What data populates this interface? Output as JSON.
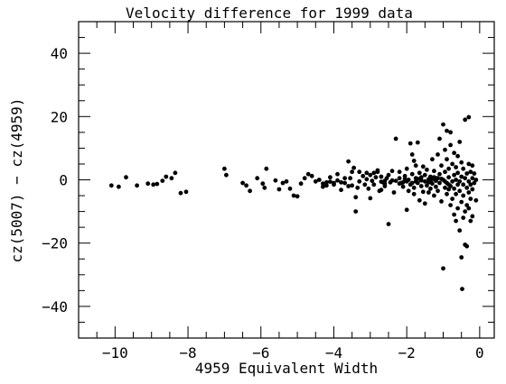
{
  "chart_data": {
    "type": "scatter",
    "title": "Velocity difference for 1999 data",
    "xlabel": "4959 Equivalent Width",
    "ylabel": "cz(5007) − cz(4959)",
    "xlim": [
      -11,
      0.4
    ],
    "ylim": [
      -50,
      50
    ],
    "xticks": [
      -10,
      -8,
      -6,
      -4,
      -2,
      0
    ],
    "yticks": [
      -40,
      -20,
      0,
      20,
      40
    ],
    "x_tick_labels": [
      "−10",
      "−8",
      "−6",
      "−4",
      "−2",
      "0"
    ],
    "y_tick_labels": [
      "−40",
      "−20",
      "0",
      "20",
      "40"
    ],
    "grid": false,
    "legend": "none",
    "marker_color": "#000000",
    "series": [
      {
        "points": [
          [
            -10.1,
            -1.8
          ],
          [
            -9.9,
            -2.2
          ],
          [
            -9.7,
            0.8
          ],
          [
            -9.4,
            -1.8
          ],
          [
            -9.1,
            -1.2
          ],
          [
            -8.95,
            -1.5
          ],
          [
            -8.85,
            -1.3
          ],
          [
            -8.7,
            -0.3
          ],
          [
            -8.6,
            1.0
          ],
          [
            -8.45,
            0.5
          ],
          [
            -8.35,
            2.2
          ],
          [
            -8.2,
            -4.2
          ],
          [
            -8.05,
            -3.8
          ],
          [
            -7.0,
            3.5
          ],
          [
            -6.95,
            1.5
          ],
          [
            -6.5,
            -1.0
          ],
          [
            -6.4,
            -1.8
          ],
          [
            -6.3,
            -3.5
          ],
          [
            -6.1,
            0.5
          ],
          [
            -5.95,
            -1.2
          ],
          [
            -5.9,
            -2.5
          ],
          [
            -5.85,
            3.5
          ],
          [
            -5.6,
            -0.2
          ],
          [
            -5.5,
            -3.0
          ],
          [
            -5.4,
            -1.0
          ],
          [
            -5.3,
            -0.5
          ],
          [
            -5.2,
            -2.8
          ],
          [
            -5.1,
            -5.0
          ],
          [
            -5.0,
            -5.2
          ],
          [
            -4.9,
            -1.2
          ],
          [
            -4.8,
            0.5
          ],
          [
            -4.7,
            1.8
          ],
          [
            -4.6,
            1.2
          ],
          [
            -4.5,
            -0.5
          ],
          [
            -4.4,
            0.0
          ],
          [
            -4.3,
            -2.2
          ],
          [
            -4.2,
            -0.8
          ],
          [
            -4.1,
            0.8
          ],
          [
            -4.0,
            -1.5
          ],
          [
            -3.9,
            1.8
          ],
          [
            -3.8,
            -3.2
          ],
          [
            -3.7,
            -1.0
          ],
          [
            -3.6,
            -2.0
          ],
          [
            -3.55,
            0.5
          ],
          [
            -3.5,
            -1.8
          ],
          [
            -3.45,
            3.8
          ],
          [
            -3.4,
            -10.0
          ],
          [
            -3.35,
            -2.5
          ],
          [
            -3.3,
            -0.5
          ],
          [
            -3.2,
            1.2
          ],
          [
            -3.15,
            -1.5
          ],
          [
            -3.1,
            0.2
          ],
          [
            -3.05,
            -2.8
          ],
          [
            -3.0,
            1.5
          ],
          [
            -2.95,
            -0.3
          ],
          [
            -2.9,
            -1.5
          ],
          [
            -2.85,
            0.8
          ],
          [
            -2.8,
            2.5
          ],
          [
            -2.75,
            -3.5
          ],
          [
            -2.7,
            1.0
          ],
          [
            -2.65,
            -0.8
          ],
          [
            -2.6,
            -2.0
          ],
          [
            -2.55,
            0.5
          ],
          [
            -3.6,
            5.8
          ],
          [
            -3.5,
            2.5
          ],
          [
            -3.3,
            2.5
          ],
          [
            -3.1,
            2.2
          ],
          [
            -2.9,
            2.2
          ],
          [
            -2.8,
            3.0
          ],
          [
            -3.4,
            -5.5
          ],
          [
            -3.0,
            -5.8
          ],
          [
            -2.7,
            -3.2
          ],
          [
            -2.6,
            -1.2
          ],
          [
            -2.5,
            1.5
          ],
          [
            -2.5,
            -14.0
          ],
          [
            -2.4,
            2.8
          ],
          [
            -2.4,
            -0.2
          ],
          [
            -2.3,
            13.0
          ],
          [
            -2.35,
            -4.0
          ],
          [
            -2.2,
            2.5
          ],
          [
            -2.2,
            0.5
          ],
          [
            -2.15,
            -1.0
          ],
          [
            -2.1,
            -2.2
          ],
          [
            -2.05,
            1.2
          ],
          [
            -2.0,
            -9.5
          ],
          [
            -2.0,
            3.5
          ],
          [
            -1.95,
            0.0
          ],
          [
            -1.95,
            -3.5
          ],
          [
            -1.9,
            11.5
          ],
          [
            -1.9,
            -1.5
          ],
          [
            -1.85,
            8.0
          ],
          [
            -1.85,
            1.8
          ],
          [
            -1.8,
            6.0
          ],
          [
            -1.8,
            -2.5
          ],
          [
            -1.8,
            -4.5
          ],
          [
            -1.75,
            4.5
          ],
          [
            -1.75,
            0.5
          ],
          [
            -1.7,
            11.8
          ],
          [
            -1.7,
            -1.0
          ],
          [
            -1.65,
            2.2
          ],
          [
            -1.65,
            -6.5
          ],
          [
            -1.6,
            0.8
          ],
          [
            -1.6,
            -2.0
          ],
          [
            -1.55,
            4.2
          ],
          [
            -1.55,
            -3.8
          ],
          [
            -1.5,
            1.5
          ],
          [
            -1.5,
            -0.5
          ],
          [
            -1.5,
            -7.5
          ],
          [
            -1.45,
            3.2
          ],
          [
            -1.45,
            -1.8
          ],
          [
            -1.4,
            0.2
          ],
          [
            -1.4,
            -4.0
          ],
          [
            -1.35,
            1.0
          ],
          [
            -1.35,
            -2.8
          ],
          [
            -1.3,
            6.5
          ],
          [
            -1.3,
            -1.2
          ],
          [
            -1.25,
            2.8
          ],
          [
            -1.25,
            -5.0
          ],
          [
            -1.2,
            0.5
          ],
          [
            -1.2,
            -2.2
          ],
          [
            -1.15,
            8.0
          ],
          [
            -1.15,
            -3.5
          ],
          [
            -1.1,
            13.0
          ],
          [
            -1.1,
            1.8
          ],
          [
            -1.1,
            -1.0
          ],
          [
            -1.05,
            4.5
          ],
          [
            -1.05,
            -6.8
          ],
          [
            -1.0,
            17.5
          ],
          [
            -1.0,
            0.0
          ],
          [
            -1.0,
            -28.0
          ],
          [
            -0.95,
            9.5
          ],
          [
            -0.95,
            2.5
          ],
          [
            -0.95,
            -2.5
          ],
          [
            -0.9,
            15.5
          ],
          [
            -0.9,
            6.5
          ],
          [
            -0.9,
            -1.0
          ],
          [
            -0.9,
            -4.5
          ],
          [
            -0.85,
            3.5
          ],
          [
            -0.85,
            0.8
          ],
          [
            -0.85,
            -3.0
          ],
          [
            -0.8,
            11.0
          ],
          [
            -0.8,
            15.0
          ],
          [
            -0.8,
            -2.0
          ],
          [
            -0.8,
            -8.0
          ],
          [
            -0.75,
            5.0
          ],
          [
            -0.75,
            -0.5
          ],
          [
            -0.75,
            -6.0
          ],
          [
            -0.7,
            1.5
          ],
          [
            -0.7,
            8.5
          ],
          [
            -0.7,
            -2.8
          ],
          [
            -0.7,
            -11.0
          ],
          [
            -0.65,
            4.0
          ],
          [
            -0.65,
            0.0
          ],
          [
            -0.65,
            -4.5
          ],
          [
            -0.65,
            -13.0
          ],
          [
            -0.6,
            7.5
          ],
          [
            -0.6,
            2.2
          ],
          [
            -0.6,
            -1.5
          ],
          [
            -0.6,
            -9.0
          ],
          [
            -0.55,
            12.0
          ],
          [
            -0.55,
            -0.5
          ],
          [
            -0.55,
            -3.5
          ],
          [
            -0.55,
            -16.0
          ],
          [
            -0.5,
            5.5
          ],
          [
            -0.5,
            1.0
          ],
          [
            -0.5,
            -7.0
          ],
          [
            -0.5,
            -24.5
          ],
          [
            -0.48,
            -34.5
          ],
          [
            -0.45,
            3.5
          ],
          [
            -0.45,
            -1.5
          ],
          [
            -0.45,
            -5.0
          ],
          [
            -0.45,
            -12.0
          ],
          [
            -0.4,
            19.0
          ],
          [
            -0.4,
            0.5
          ],
          [
            -0.4,
            -10.0
          ],
          [
            -0.4,
            -20.5
          ],
          [
            -0.35,
            2.0
          ],
          [
            -0.35,
            -2.5
          ],
          [
            -0.35,
            -8.0
          ],
          [
            -0.35,
            -21.0
          ],
          [
            -0.3,
            19.8
          ],
          [
            -0.3,
            5.0
          ],
          [
            -0.3,
            -0.5
          ],
          [
            -0.3,
            -4.0
          ],
          [
            -0.3,
            -9.0
          ],
          [
            -0.25,
            2.5
          ],
          [
            -0.25,
            -1.5
          ],
          [
            -0.25,
            -6.0
          ],
          [
            -0.25,
            -13.0
          ],
          [
            -0.2,
            4.5
          ],
          [
            -0.2,
            0.5
          ],
          [
            -0.2,
            -3.0
          ],
          [
            -0.2,
            -11.5
          ],
          [
            -0.15,
            2.0
          ],
          [
            -0.15,
            -1.0
          ],
          [
            -0.1,
            0.0
          ],
          [
            -0.1,
            -6.5
          ],
          [
            -1.3,
            0.2
          ],
          [
            -1.25,
            0.8
          ],
          [
            -1.2,
            -0.3
          ],
          [
            -1.15,
            0.5
          ],
          [
            -1.05,
            0.3
          ],
          [
            -0.95,
            -0.5
          ],
          [
            -0.85,
            -1.5
          ],
          [
            -1.4,
            -0.8
          ],
          [
            -1.35,
            -0.3
          ],
          [
            -1.6,
            -0.2
          ],
          [
            -1.7,
            0.3
          ],
          [
            -1.75,
            -0.5
          ],
          [
            -1.85,
            -1.0
          ],
          [
            -2.0,
            -0.5
          ],
          [
            -2.05,
            0.3
          ],
          [
            -2.1,
            -0.8
          ],
          [
            -2.2,
            -1.2
          ],
          [
            -2.3,
            -0.3
          ],
          [
            -2.45,
            -0.8
          ],
          [
            -2.6,
            -0.3
          ],
          [
            -2.7,
            -0.6
          ],
          [
            -3.7,
            0.5
          ],
          [
            -3.8,
            -0.8
          ],
          [
            -3.9,
            -0.2
          ],
          [
            -4.0,
            -1.0
          ],
          [
            -4.1,
            -0.6
          ],
          [
            -4.2,
            -1.8
          ],
          [
            -4.3,
            -1.2
          ]
        ]
      }
    ]
  }
}
